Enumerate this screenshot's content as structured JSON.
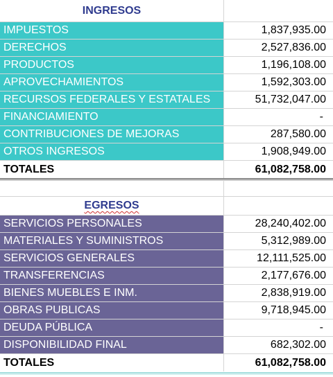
{
  "ingresos": {
    "title": "INGRESOS",
    "rows": [
      {
        "label": "IMPUESTOS",
        "value": "1,837,935.00"
      },
      {
        "label": "DERECHOS",
        "value": "2,527,836.00"
      },
      {
        "label": "PRODUCTOS",
        "value": "1,196,108.00"
      },
      {
        "label": "APROVECHAMIENTOS",
        "value": "1,592,303.00"
      },
      {
        "label": "RECURSOS FEDERALES Y ESTATALES",
        "value": "51,732,047.00"
      },
      {
        "label": "FINANCIAMIENTO",
        "value": "-"
      },
      {
        "label": "CONTRIBUCIONES DE MEJORAS",
        "value": "287,580.00"
      },
      {
        "label": "OTROS INGRESOS",
        "value": "1,908,949.00"
      }
    ],
    "total_label": "TOTALES",
    "total_value": "61,082,758.00"
  },
  "egresos": {
    "title": "EGRESOS",
    "rows": [
      {
        "label": "SERVICIOS PERSONALES",
        "value": "28,240,402.00"
      },
      {
        "label": "MATERIALES Y SUMINISTROS",
        "value": "5,312,989.00"
      },
      {
        "label": "SERVICIOS GENERALES",
        "value": "12,111,525.00"
      },
      {
        "label": "TRANSFERENCIAS",
        "value": "2,177,676.00"
      },
      {
        "label": "BIENES MUEBLES E INM.",
        "value": "2,838,919.00"
      },
      {
        "label": "OBRAS PUBLICAS",
        "value": "9,718,945.00"
      },
      {
        "label": "DEUDA PÚBLICA",
        "value": "-"
      },
      {
        "label": "DISPONIBILIDAD FINAL",
        "value": "682,302.00"
      }
    ],
    "total_label": "TOTALES",
    "total_value": "61,082,758.00"
  },
  "colors": {
    "ingresos_fill": "#3cc8c8",
    "egresos_fill": "#6a6496",
    "header_text": "#2f3b8f"
  }
}
